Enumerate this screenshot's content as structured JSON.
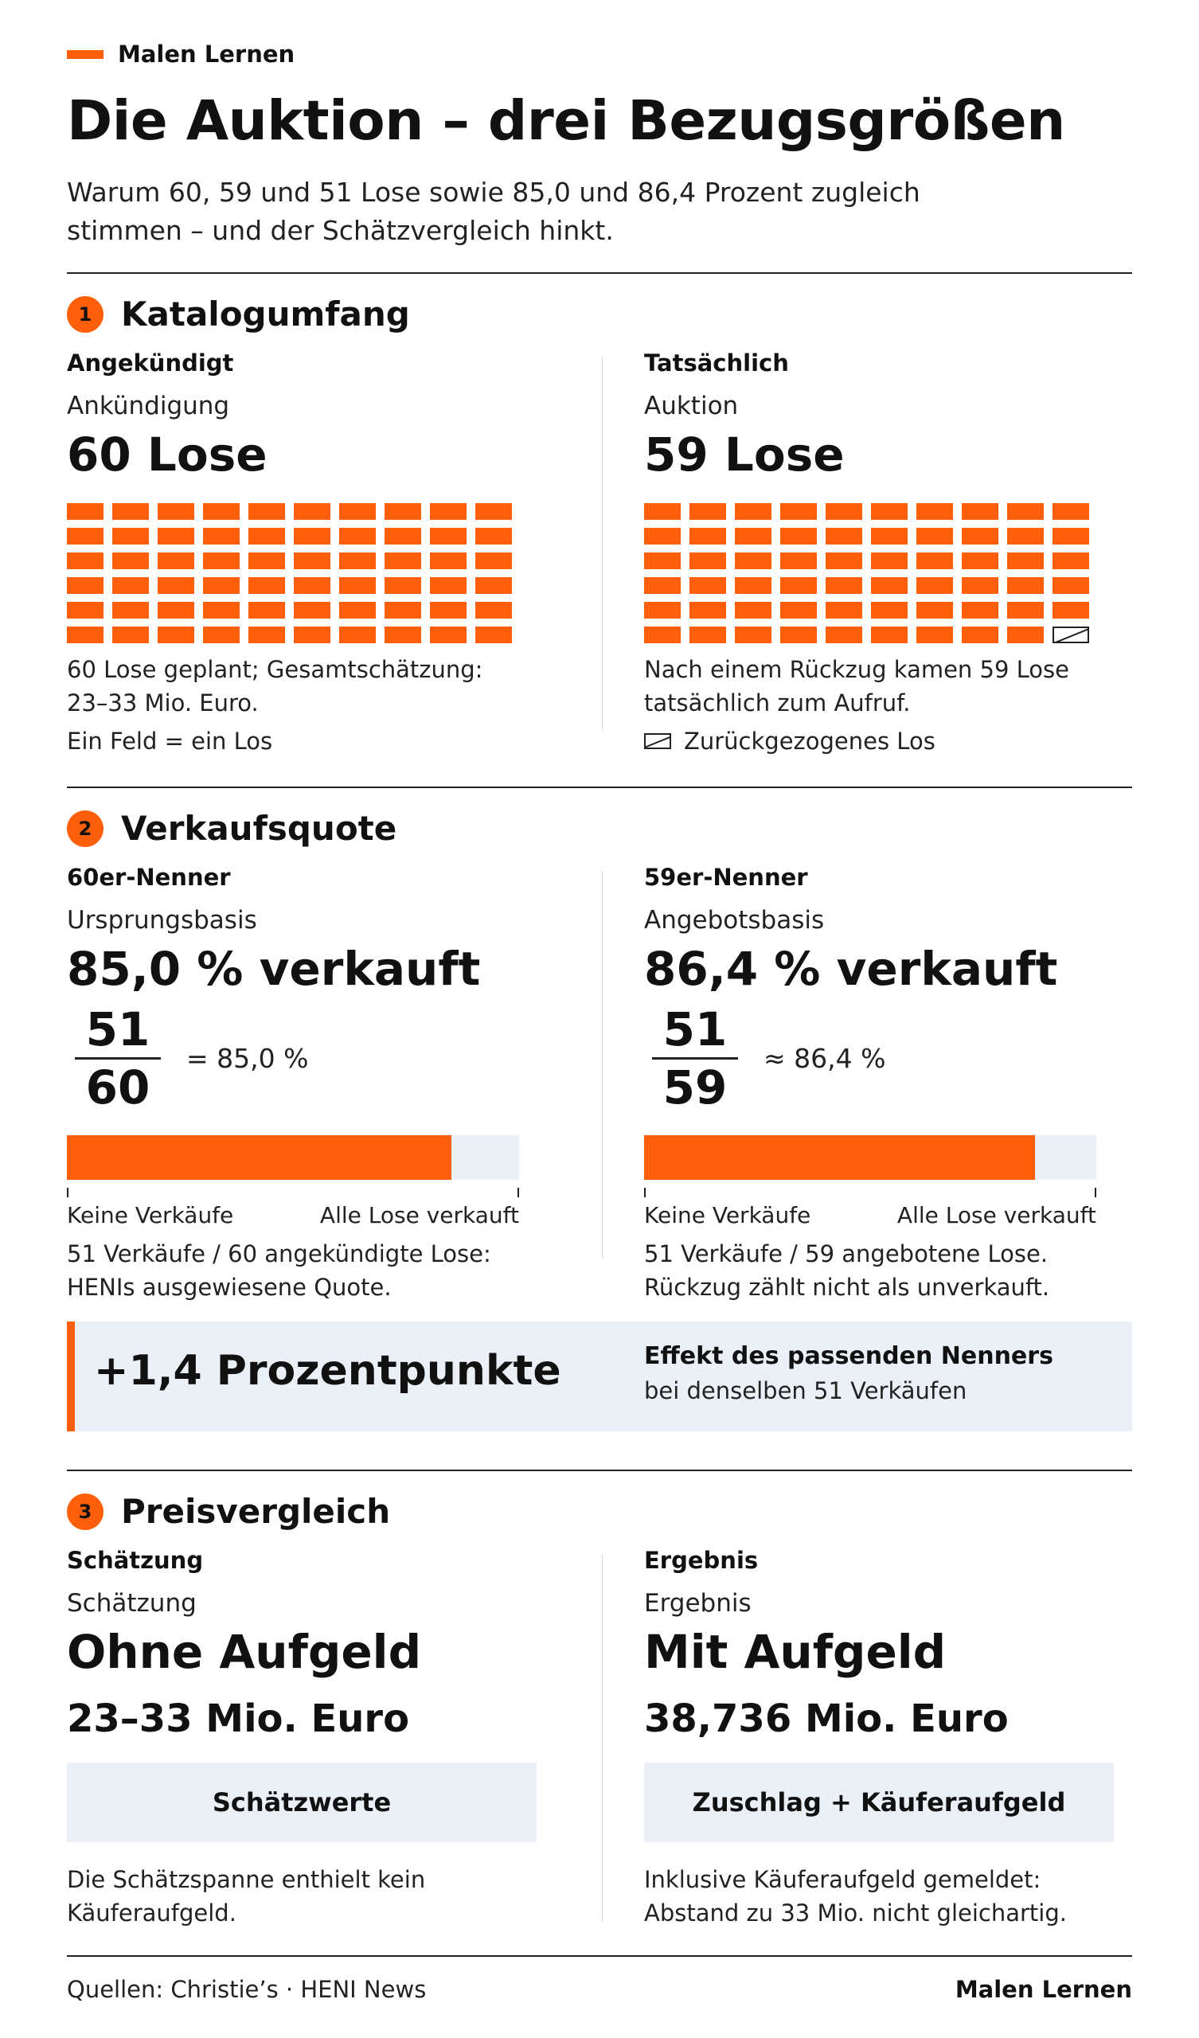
{
  "brand": {
    "name": "Malen Lernen",
    "accent": "#ff5f0a"
  },
  "title": "Die Auktion – drei Bezugsgrößen",
  "subtitle": "Warum 60, 59 und 51 Lose sowie 85,0 und 86,4 Prozent zugleich stimmen – und der Schätzvergleich hinkt.",
  "section1": {
    "number": "1",
    "title": "Katalogumfang",
    "left": {
      "label": "Angekündigt",
      "sublabel": "Ankündigung",
      "value": "60 Lose",
      "lots_total": 60,
      "lots_withdrawn": 0,
      "note": "60 Lose geplant; Gesamtschätzung: 23–33 Mio. Euro.",
      "legend": "Ein Feld = ein Los"
    },
    "right": {
      "label": "Tatsächlich",
      "sublabel": "Auktion",
      "value": "59 Lose",
      "lots_total": 60,
      "lots_withdrawn": 1,
      "note": "Nach einem Rückzug kamen 59 Lose tatsächlich zum Aufruf.",
      "legend": "Zurückgezogenes Los"
    }
  },
  "section2": {
    "number": "2",
    "title": "Verkaufsquote",
    "left": {
      "label": "60er-Nenner",
      "sublabel": "Ursprungsbasis",
      "value": "85,0 % verkauft",
      "numerator": "51",
      "denominator": "60",
      "equation": "= 85,0 %",
      "share": 0.85,
      "axis_min": "Keine Verkäufe",
      "axis_max": "Alle Lose verkauft",
      "note": "51 Verkäufe / 60 angekündigte Lose: HENIs ausgewiesene Quote."
    },
    "right": {
      "label": "59er-Nenner",
      "sublabel": "Angebotsbasis",
      "value": "86,4 % verkauft",
      "numerator": "51",
      "denominator": "59",
      "equation": "≈ 86,4 %",
      "share": 0.864,
      "axis_min": "Keine Verkäufe",
      "axis_max": "Alle Lose verkauft",
      "note": "51 Verkäufe / 59 angebotene Lose. Rückzug zählt nicht als unverkauft."
    },
    "effect": {
      "value": "+1,4 Prozentpunkte",
      "title": "Effekt des passenden Nenners",
      "text": "bei denselben 51 Verkäufen"
    }
  },
  "section3": {
    "number": "3",
    "title": "Preisvergleich",
    "left": {
      "label": "Schätzung",
      "sublabel": "Schätzung",
      "value": "Ohne Aufgeld",
      "amount": "23–33 Mio. Euro",
      "pill": "Schätzwerte",
      "note": "Die Schätzspanne enthielt kein Käuferaufgeld."
    },
    "right": {
      "label": "Ergebnis",
      "sublabel": "Ergebnis",
      "value": "Mit Aufgeld",
      "amount": "38,736 Mio. Euro",
      "pill": "Zuschlag + Käuferaufgeld",
      "note": "Inklusive Käuferaufgeld gemeldet: Abstand zu 33 Mio. nicht gleichartig."
    }
  },
  "footer": {
    "sources": "Quellen: Christie’s · HENI News",
    "brand": "Malen Lernen"
  }
}
